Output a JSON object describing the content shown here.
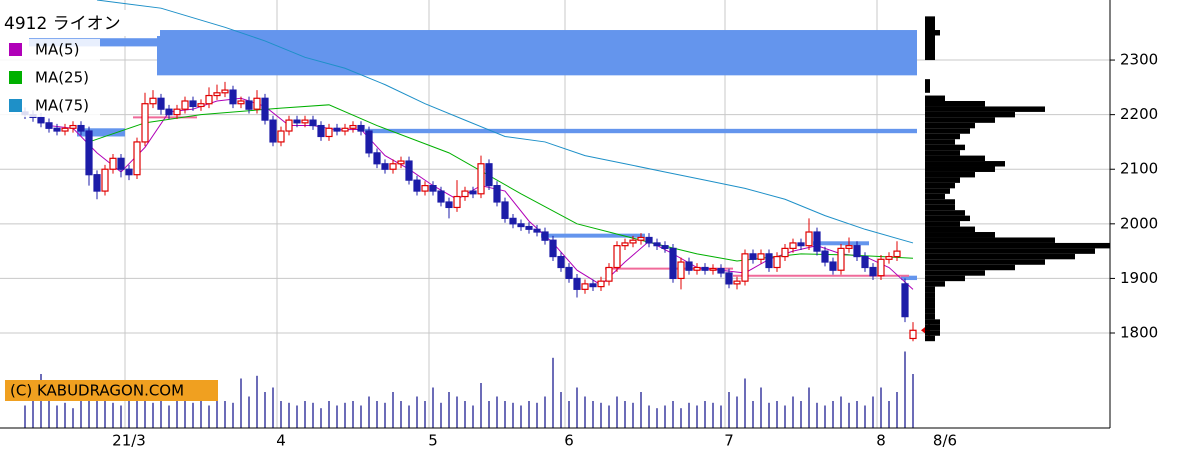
{
  "chart_data": {
    "type": "candlestick",
    "title": "4912 ライオン",
    "credit": "(C) KABUDRAGON.COM",
    "last_date_label": "8/6",
    "up_color": "#e00000",
    "down_color": "#1c1ca8",
    "grid": true,
    "ylim": [
      1626,
      2410
    ],
    "yticks": [
      1800,
      1900,
      2000,
      2100,
      2200,
      2300
    ],
    "xticks": [
      {
        "value": 13,
        "label": "21/3"
      },
      {
        "value": 32,
        "label": "4"
      },
      {
        "value": 51,
        "label": "5"
      },
      {
        "value": 68,
        "label": "6"
      },
      {
        "value": 88,
        "label": "7"
      },
      {
        "value": 107,
        "label": "8"
      }
    ],
    "open": [
      2205,
      2200,
      2195,
      2185,
      2175,
      2170,
      2175,
      2180,
      2170,
      2090,
      2060,
      2100,
      2120,
      2100,
      2090,
      2150,
      2220,
      2230,
      2210,
      2200,
      2210,
      2225,
      2215,
      2220,
      2235,
      2240,
      2245,
      2220,
      2225,
      2210,
      2230,
      2190,
      2150,
      2170,
      2190,
      2185,
      2190,
      2180,
      2160,
      2175,
      2170,
      2175,
      2180,
      2170,
      2130,
      2110,
      2100,
      2110,
      2115,
      2080,
      2060,
      2070,
      2060,
      2040,
      2030,
      2050,
      2060,
      2055,
      2110,
      2070,
      2040,
      2010,
      2000,
      1995,
      1990,
      1985,
      1970,
      1940,
      1920,
      1900,
      1880,
      1890,
      1885,
      1895,
      1920,
      1960,
      1965,
      1970,
      1975,
      1965,
      1960,
      1955,
      1900,
      1930,
      1915,
      1920,
      1915,
      1918,
      1910,
      1890,
      1895,
      1945,
      1935,
      1945,
      1920,
      1940,
      1955,
      1965,
      1960,
      1985,
      1950,
      1930,
      1915,
      1955,
      1960,
      1940,
      1920,
      1905,
      1935,
      1940,
      1890,
      1790
    ],
    "high": [
      2213,
      2208,
      2203,
      2193,
      2183,
      2183,
      2188,
      2188,
      2178,
      2098,
      2108,
      2128,
      2128,
      2108,
      2158,
      2240,
      2245,
      2238,
      2218,
      2218,
      2233,
      2233,
      2228,
      2250,
      2255,
      2260,
      2253,
      2233,
      2233,
      2245,
      2238,
      2198,
      2178,
      2198,
      2198,
      2198,
      2198,
      2188,
      2183,
      2183,
      2183,
      2188,
      2188,
      2178,
      2138,
      2118,
      2118,
      2123,
      2123,
      2088,
      2078,
      2078,
      2068,
      2048,
      2080,
      2068,
      2068,
      2125,
      2118,
      2078,
      2048,
      2018,
      2008,
      2003,
      1998,
      1993,
      1978,
      1948,
      1928,
      1908,
      1898,
      1898,
      1903,
      1928,
      1968,
      1973,
      1978,
      1983,
      1983,
      1973,
      1968,
      1963,
      1938,
      1938,
      1928,
      1928,
      1926,
      1926,
      1918,
      1903,
      1953,
      1953,
      1953,
      1953,
      1948,
      1963,
      1973,
      1973,
      2010,
      1993,
      1958,
      1938,
      1963,
      1975,
      1968,
      1948,
      1928,
      1943,
      1948,
      1968,
      1900,
      1820
    ],
    "low": [
      2192,
      2187,
      2177,
      2167,
      2162,
      2162,
      2167,
      2162,
      2070,
      2045,
      2052,
      2092,
      2085,
      2080,
      2082,
      2142,
      2212,
      2200,
      2192,
      2192,
      2202,
      2207,
      2207,
      2212,
      2227,
      2232,
      2212,
      2212,
      2202,
      2202,
      2182,
      2142,
      2142,
      2162,
      2177,
      2177,
      2172,
      2152,
      2152,
      2162,
      2162,
      2167,
      2162,
      2122,
      2102,
      2092,
      2092,
      2102,
      2072,
      2052,
      2052,
      2052,
      2032,
      2010,
      2022,
      2042,
      2047,
      2047,
      2062,
      2032,
      2002,
      1992,
      1987,
      1982,
      1977,
      1962,
      1932,
      1912,
      1892,
      1865,
      1872,
      1877,
      1877,
      1887,
      1912,
      1952,
      1957,
      1962,
      1957,
      1952,
      1947,
      1892,
      1880,
      1907,
      1907,
      1907,
      1907,
      1902,
      1882,
      1880,
      1887,
      1927,
      1927,
      1912,
      1912,
      1932,
      1947,
      1952,
      1952,
      1942,
      1922,
      1907,
      1907,
      1947,
      1932,
      1912,
      1897,
      1897,
      1927,
      1932,
      1820,
      1785
    ],
    "close": [
      2200,
      2195,
      2185,
      2175,
      2170,
      2175,
      2180,
      2170,
      2090,
      2060,
      2100,
      2120,
      2100,
      2090,
      2150,
      2220,
      2230,
      2210,
      2200,
      2210,
      2225,
      2215,
      2220,
      2235,
      2240,
      2245,
      2220,
      2225,
      2210,
      2230,
      2190,
      2150,
      2170,
      2190,
      2185,
      2190,
      2180,
      2160,
      2175,
      2170,
      2175,
      2180,
      2170,
      2130,
      2110,
      2100,
      2110,
      2115,
      2080,
      2060,
      2070,
      2060,
      2040,
      2030,
      2050,
      2060,
      2055,
      2110,
      2070,
      2040,
      2010,
      2000,
      1995,
      1990,
      1985,
      1970,
      1940,
      1920,
      1900,
      1880,
      1890,
      1885,
      1895,
      1920,
      1960,
      1965,
      1970,
      1975,
      1965,
      1960,
      1955,
      1900,
      1930,
      1915,
      1920,
      1915,
      1918,
      1910,
      1890,
      1895,
      1945,
      1935,
      1945,
      1920,
      1940,
      1955,
      1965,
      1960,
      1985,
      1950,
      1930,
      1915,
      1955,
      1960,
      1940,
      1920,
      1905,
      1935,
      1940,
      1950,
      1830,
      1805
    ],
    "volume": {
      "color": "#3a3aa0",
      "ylim": [
        0,
        100
      ],
      "values": [
        25,
        30,
        60,
        35,
        25,
        28,
        22,
        30,
        45,
        40,
        30,
        28,
        25,
        50,
        35,
        40,
        28,
        30,
        25,
        45,
        30,
        28,
        35,
        25,
        40,
        30,
        28,
        55,
        35,
        58,
        40,
        45,
        30,
        28,
        25,
        30,
        28,
        22,
        30,
        25,
        28,
        30,
        25,
        35,
        30,
        28,
        40,
        30,
        25,
        35,
        30,
        45,
        28,
        40,
        35,
        30,
        25,
        50,
        30,
        35,
        30,
        28,
        25,
        30,
        28,
        35,
        78,
        40,
        30,
        45,
        35,
        30,
        28,
        25,
        35,
        30,
        28,
        40,
        25,
        22,
        25,
        30,
        22,
        28,
        25,
        30,
        28,
        25,
        40,
        35,
        55,
        30,
        45,
        28,
        30,
        25,
        35,
        30,
        45,
        28,
        25,
        30,
        35,
        28,
        30,
        25,
        35,
        45,
        30,
        40,
        85,
        60
      ]
    },
    "ma": [
      {
        "name": "MA(5)",
        "color": "#b000b8",
        "x": [
          3,
          6,
          9,
          12,
          15,
          18,
          21,
          24,
          27,
          30,
          33,
          36,
          39,
          42,
          45,
          48,
          51,
          54,
          57,
          60,
          63,
          66,
          69,
          72,
          75,
          78,
          81,
          84,
          87,
          90,
          93,
          96,
          99,
          102,
          105,
          108,
          111
        ],
        "values": [
          2180,
          2175,
          2130,
          2095,
          2140,
          2205,
          2210,
          2225,
          2230,
          2215,
          2180,
          2180,
          2172,
          2173,
          2125,
          2100,
          2070,
          2045,
          2070,
          2060,
          2005,
          1965,
          1915,
          1888,
          1930,
          1968,
          1945,
          1920,
          1915,
          1910,
          1935,
          1950,
          1960,
          1945,
          1940,
          1920,
          1880
        ]
      },
      {
        "name": "MA(25)",
        "color": "#00b000",
        "x": [
          8,
          15,
          22,
          32,
          38,
          44,
          53,
          62,
          69,
          77,
          84,
          89,
          97,
          103,
          111
        ],
        "values": [
          2150,
          2185,
          2200,
          2212,
          2218,
          2180,
          2130,
          2055,
          2000,
          1970,
          1945,
          1932,
          1945,
          1943,
          1937
        ]
      },
      {
        "name": "MA(75)",
        "color": "#1e90c8",
        "x": [
          9,
          17,
          25,
          30,
          35,
          40,
          45,
          50,
          55,
          60,
          65,
          70,
          75,
          80,
          85,
          90,
          95,
          100,
          105,
          111
        ],
        "values": [
          2410,
          2395,
          2360,
          2335,
          2305,
          2285,
          2255,
          2220,
          2190,
          2160,
          2150,
          2125,
          2110,
          2095,
          2080,
          2065,
          2045,
          2015,
          1990,
          1965
        ]
      }
    ],
    "levels": {
      "color": "#6495ed",
      "items": [
        {
          "low": 2272,
          "high": 2355,
          "start": 17,
          "end": 112
        },
        {
          "low": 2325,
          "high": 2340,
          "start": 1,
          "end": 17
        },
        {
          "low": 2160,
          "high": 2175,
          "start": 7,
          "end": 13
        },
        {
          "low": 2166,
          "high": 2174,
          "start": 43,
          "end": 112
        },
        {
          "low": 1975,
          "high": 1982,
          "start": 65,
          "end": 78
        },
        {
          "low": 1962,
          "high": 1968,
          "start": 99,
          "end": 106
        },
        {
          "low": 1897,
          "high": 1905,
          "start": 110,
          "end": 112
        }
      ]
    },
    "support_lines": {
      "color": "#f06a9a",
      "items": [
        {
          "price": 2195,
          "start": 14,
          "end": 22
        },
        {
          "price": 1918,
          "start": 73,
          "end": 89
        },
        {
          "price": 1905,
          "start": 89,
          "end": 111
        }
      ]
    },
    "volume_profile": {
      "color": "#000000",
      "xlim": [
        0,
        200
      ],
      "prices": [
        2360,
        2350,
        2340,
        2260,
        2250,
        2230,
        2220,
        2210,
        2200,
        2190,
        2180,
        2170,
        2160,
        2150,
        2140,
        2130,
        2120,
        2110,
        2100,
        2090,
        2080,
        2070,
        2060,
        2050,
        2040,
        2030,
        2020,
        2010,
        2000,
        1990,
        1980,
        1970,
        1960,
        1950,
        1940,
        1930,
        1920,
        1910,
        1900,
        1890,
        1880,
        1870,
        1860,
        1850,
        1840,
        1830,
        1820,
        1810,
        1800,
        1790
      ],
      "values": [
        5,
        15,
        10,
        5,
        5,
        20,
        60,
        120,
        90,
        70,
        50,
        45,
        35,
        30,
        40,
        35,
        60,
        80,
        70,
        50,
        35,
        30,
        25,
        20,
        30,
        30,
        40,
        45,
        35,
        50,
        70,
        130,
        185,
        170,
        150,
        120,
        90,
        60,
        40,
        20,
        10,
        10,
        10,
        10,
        10,
        10,
        15,
        15,
        15,
        10
      ]
    }
  }
}
